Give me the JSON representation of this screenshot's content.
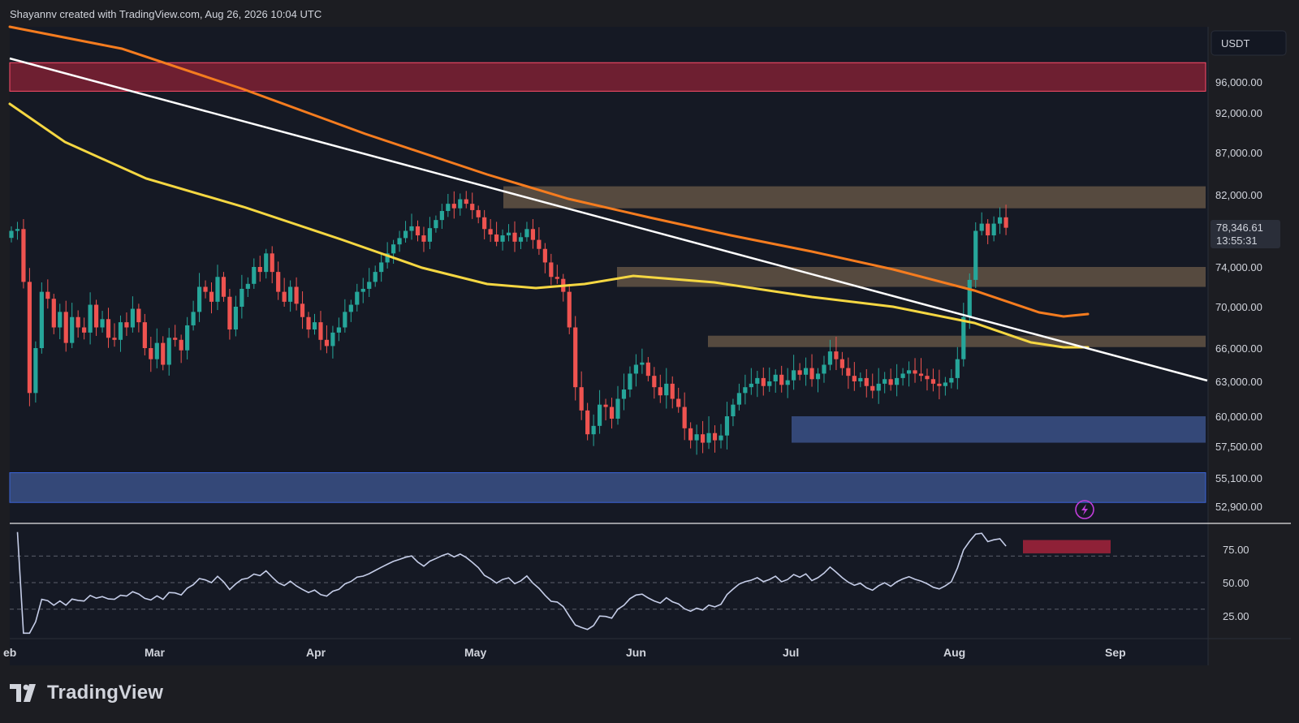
{
  "header": {
    "credit": "Shayannv created with TradingView.com, Aug 26, 2026 10:04 UTC"
  },
  "footer": {
    "brand": "TradingView"
  },
  "colors": {
    "background": "#1c1d22",
    "plot_background": "#151924",
    "up_candle": "#26a69a",
    "down_candle": "#ef5350",
    "ma_orange": "#f57c1f",
    "ma_yellow": "#f5d742",
    "trendline": "#ffffff",
    "supply_zone": "#b8243d",
    "resistance_zone": "#8c7355",
    "demand_zone": "#4a68b0",
    "rsi_line": "#c5cde8",
    "price_tag": "#2a2e39"
  },
  "chart_data": {
    "type": "candlestick",
    "symbol_currency": "USDT",
    "last_price": "78,346.61",
    "countdown": "13:55:31",
    "price_axis_ticks": [
      "96,000.00",
      "92,000.00",
      "87,000.00",
      "82,000.00",
      "74,000.00",
      "70,000.00",
      "66,000.00",
      "63,000.00",
      "60,000.00",
      "57,500.00",
      "55,100.00",
      "52,900.00"
    ],
    "rsi_axis_ticks": [
      "75.00",
      "50.00",
      "25.00"
    ],
    "x_labels": [
      "eb",
      "Mar",
      "Apr",
      "May",
      "Jun",
      "Jul",
      "Aug",
      "Sep"
    ],
    "price_zones": [
      {
        "name": "supply",
        "from": 94800,
        "to": 98500
      },
      {
        "name": "resistance-82k",
        "from": 80500,
        "to": 83000
      },
      {
        "name": "resistance-74k",
        "from": 72000,
        "to": 74000
      },
      {
        "name": "resistance-66k",
        "from": 66100,
        "to": 67200
      },
      {
        "name": "demand-60k",
        "from": 57800,
        "to": 60000
      },
      {
        "name": "demand-55k",
        "from": 53200,
        "to": 55500
      }
    ],
    "rsi_overbought_zone": {
      "from": 72,
      "to": 82
    },
    "closes": [
      78000,
      78200,
      72500,
      62000,
      66000,
      71500,
      70800,
      68000,
      69500,
      66500,
      69000,
      68000,
      67500,
      70200,
      68000,
      68800,
      67000,
      66800,
      68500,
      68000,
      69800,
      68500,
      66000,
      65000,
      66500,
      64500,
      67000,
      66800,
      65800,
      68200,
      69500,
      72000,
      71500,
      70500,
      73000,
      71000,
      67800,
      70000,
      71800,
      72300,
      74000,
      73500,
      75500,
      73500,
      71500,
      70500,
      72000,
      70300,
      69000,
      67800,
      68500,
      66800,
      66200,
      67500,
      68000,
      69500,
      70200,
      71500,
      71800,
      72500,
      73500,
      74500,
      75500,
      76500,
      77200,
      78000,
      78500,
      77500,
      76800,
      78300,
      79200,
      80200,
      81000,
      80500,
      81500,
      81000,
      80300,
      79500,
      78200,
      77600,
      76800,
      77500,
      77800,
      76800,
      77300,
      78200,
      77000,
      76000,
      74500,
      73000,
      72800,
      71500,
      68000,
      62500,
      60500,
      58500,
      59200,
      61000,
      60800,
      59800,
      61500,
      62300,
      63700,
      64500,
      64700,
      63500,
      62500,
      61800,
      62800,
      61500,
      60800,
      59000,
      58000,
      58500,
      57800,
      58600,
      58000,
      58400,
      60000,
      61000,
      62000,
      62500,
      62800,
      63300,
      62600,
      63000,
      63600,
      62700,
      63100,
      64000,
      63600,
      64200,
      63200,
      63700,
      64500,
      65700,
      65000,
      64200,
      63500,
      63000,
      63300,
      62600,
      62200,
      62800,
      63200,
      62700,
      63300,
      63700,
      64000,
      63700,
      63500,
      63200,
      62800,
      62600,
      62900,
      63300,
      65000,
      69000,
      72700,
      78000,
      78800,
      77500,
      78800,
      79500,
      78346
    ]
  }
}
